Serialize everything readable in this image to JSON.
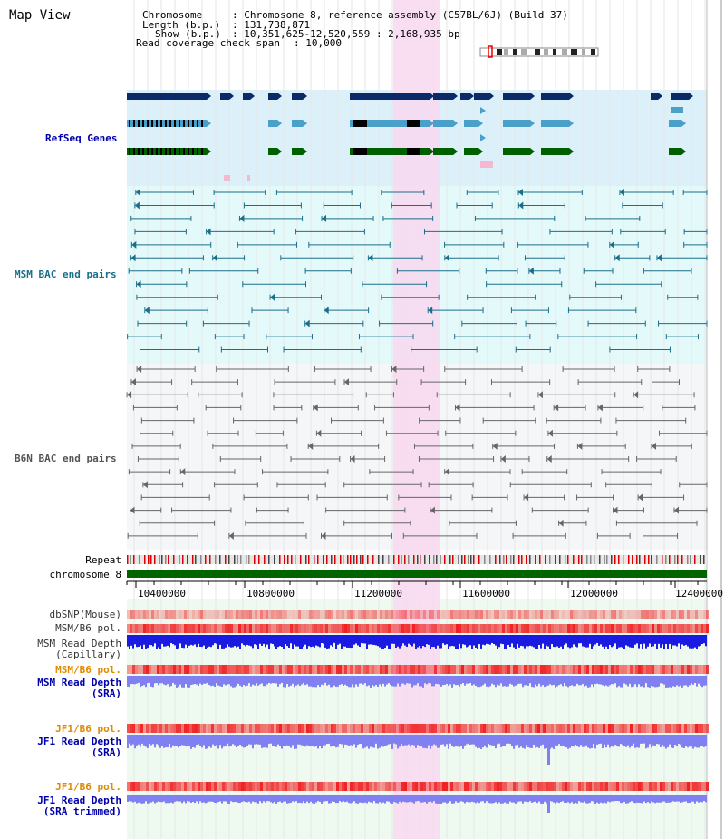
{
  "title": "Map View",
  "info": {
    "chromosome_key": "Chromosome",
    "chromosome_val": ": Chromosome 8, reference assembly (C57BL/6J) (Build 37)",
    "length_key": "Length (b.p.)",
    "length_val": ": 131,738,871",
    "show_key": "Show (b.p.)",
    "show_val": ": 10,351,625-12,520,559 : 2,168,935 bp",
    "coverage_key": "Read coverage check span",
    "coverage_val": ": 10,000"
  },
  "tracks": {
    "refseq": "RefSeq Genes",
    "msm_bac": "MSM BAC end pairs",
    "b6n_bac": "B6N BAC end pairs",
    "repeat": "Repeat",
    "chromosome": "chromosome 8",
    "dbsnp": "dbSNP(Mouse)",
    "msm_b6_pol": "MSM/B6 pol.",
    "msm_depth_cap_1": "MSM Read Depth",
    "msm_depth_cap_2": "(Capillary)",
    "msm_b6_pol2": "MSM/B6 pol.",
    "msm_depth_sra_1": "MSM Read Depth",
    "msm_depth_sra_2": "(SRA)",
    "jf1_b6_pol": "JF1/B6 pol.",
    "jf1_depth_sra_1": "JF1 Read Depth",
    "jf1_depth_sra_2": "(SRA)",
    "jf1_b6_pol2": "JF1/B6 pol.",
    "jf1_depth_trim_1": "JF1 Read Depth",
    "jf1_depth_trim_2": "(SRA trimmed)"
  },
  "axis_ticks": [
    "10400000",
    "10800000",
    "11200000",
    "11600000",
    "12000000",
    "12400000"
  ],
  "colors": {
    "refseq_bg": "#dcf0fa",
    "msm_bg": "#e4fafa",
    "b6n_bg": "#f4f6f8",
    "highlight": "#f8d8f0",
    "chromosome": "#006400",
    "snp": "#f02020",
    "depth_cap": "#1a1ae0",
    "depth_sra": "#8080f0",
    "msm_label": "#1a6e8a",
    "blue_label": "#0000aa",
    "orange_label": "#e08a00"
  }
}
